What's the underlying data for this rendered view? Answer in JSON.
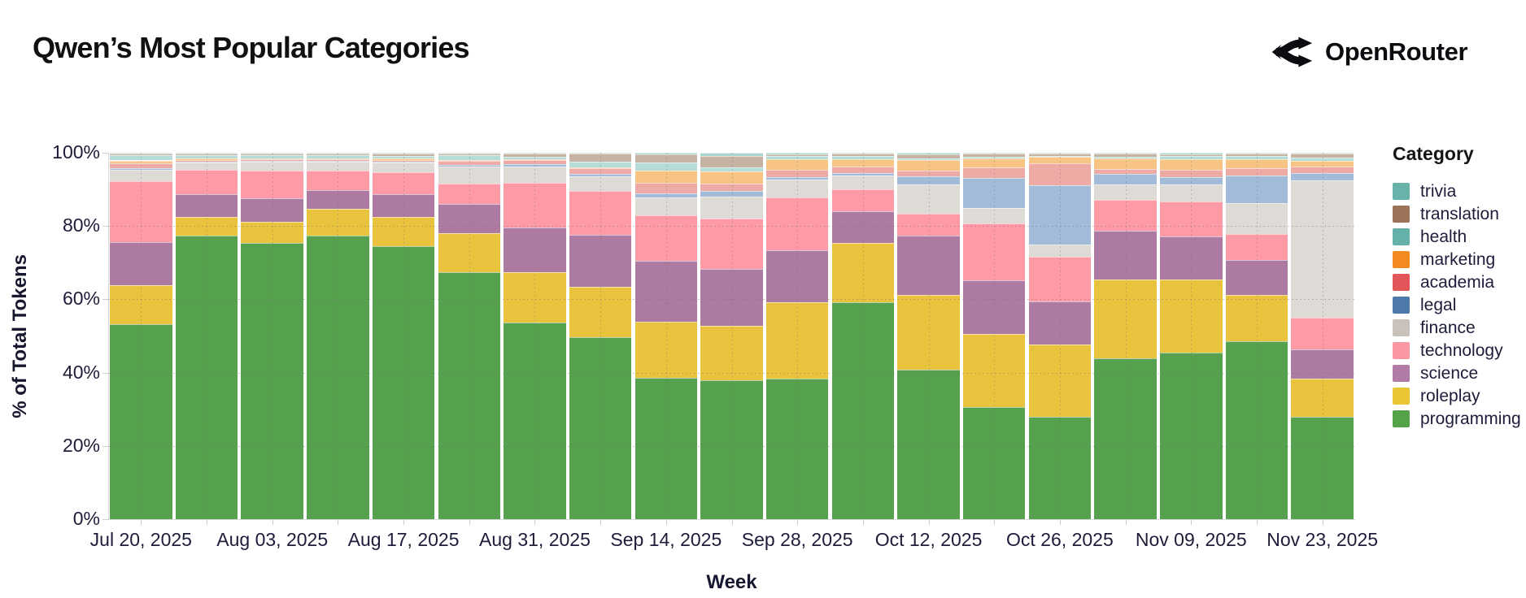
{
  "header": {
    "title": "Qwen’s Most Popular Categories",
    "brand": "OpenRouter"
  },
  "legend": {
    "title": "Category",
    "items": [
      {
        "label": "trivia",
        "color": "#68b2a9"
      },
      {
        "label": "translation",
        "color": "#9c7359"
      },
      {
        "label": "health",
        "color": "#63b1a8"
      },
      {
        "label": "marketing",
        "color": "#f28a1f"
      },
      {
        "label": "academia",
        "color": "#e25558"
      },
      {
        "label": "legal",
        "color": "#4d79ab"
      },
      {
        "label": "finance",
        "color": "#c9c2ba"
      },
      {
        "label": "technology",
        "color": "#fb97a3"
      },
      {
        "label": "science",
        "color": "#b17ba5"
      },
      {
        "label": "roleplay",
        "color": "#eac637"
      },
      {
        "label": "programming",
        "color": "#55a348"
      }
    ]
  },
  "chart_data": {
    "type": "bar",
    "stacked": true,
    "unit": "percent_of_total_tokens",
    "title": "Qwen’s Most Popular Categories",
    "xlabel": "Week",
    "ylabel": "% of Total Tokens",
    "ylim": [
      0,
      100
    ],
    "grid": true,
    "legend_position": "right",
    "weeks": [
      "Jul 20, 2025",
      "Jul 27, 2025",
      "Aug 03, 2025",
      "Aug 10, 2025",
      "Aug 17, 2025",
      "Aug 24, 2025",
      "Aug 31, 2025",
      "Sep 07, 2025",
      "Sep 14, 2025",
      "Sep 21, 2025",
      "Sep 28, 2025",
      "Oct 05, 2025",
      "Oct 12, 2025",
      "Oct 19, 2025",
      "Oct 26, 2025",
      "Nov 02, 2025",
      "Nov 09, 2025",
      "Nov 16, 2025",
      "Nov 23, 2025"
    ],
    "x_ticks": [
      {
        "label": "Jul 20, 2025",
        "week": 0
      },
      {
        "label": "Aug 03, 2025",
        "week": 2
      },
      {
        "label": "Aug 17, 2025",
        "week": 4
      },
      {
        "label": "Aug 31, 2025",
        "week": 6
      },
      {
        "label": "Sep 14, 2025",
        "week": 8
      },
      {
        "label": "Sep 28, 2025",
        "week": 10
      },
      {
        "label": "Oct 12, 2025",
        "week": 12
      },
      {
        "label": "Oct 26, 2025",
        "week": 14
      },
      {
        "label": "Nov 09, 2025",
        "week": 16
      },
      {
        "label": "Nov 23, 2025",
        "week": 18
      }
    ],
    "y_ticks": [
      {
        "label": "0%",
        "value": 0
      },
      {
        "label": "20%",
        "value": 20
      },
      {
        "label": "40%",
        "value": 40
      },
      {
        "label": "60%",
        "value": 60
      },
      {
        "label": "80%",
        "value": 80
      },
      {
        "label": "100%",
        "value": 100
      }
    ],
    "series": [
      {
        "name": "programming",
        "color": "#55a14e",
        "values": [
          53.2,
          77.4,
          75.5,
          77.3,
          74.6,
          67.3,
          53.6,
          49.7,
          38.5,
          37.9,
          38.3,
          59.3,
          40.9,
          30.5,
          28.0,
          43.9,
          45.4,
          48.6,
          27.9
        ]
      },
      {
        "name": "roleplay",
        "color": "#e9c33e",
        "values": [
          10.6,
          5.0,
          5.7,
          7.3,
          7.9,
          10.7,
          13.7,
          13.8,
          15.3,
          14.8,
          21.0,
          16.1,
          20.3,
          20.0,
          19.6,
          21.5,
          20.0,
          12.6,
          10.4
        ]
      },
      {
        "name": "science",
        "color": "#ad7aa2",
        "values": [
          11.8,
          6.4,
          6.4,
          5.1,
          6.2,
          8.1,
          12.2,
          14.1,
          16.8,
          15.5,
          14.1,
          8.7,
          16.2,
          14.8,
          11.8,
          13.3,
          11.8,
          9.6,
          8.1
        ]
      },
      {
        "name": "technology",
        "color": "#fd9aa5",
        "values": [
          16.6,
          6.5,
          7.5,
          5.4,
          6.0,
          5.5,
          12.3,
          12.0,
          12.4,
          13.8,
          14.4,
          6.0,
          6.0,
          15.5,
          12.2,
          8.4,
          9.4,
          7.0,
          8.7
        ]
      },
      {
        "name": "finance",
        "color": "#dedad6",
        "values": [
          3.2,
          2.0,
          2.4,
          2.4,
          2.6,
          4.6,
          4.5,
          4.0,
          4.8,
          6.0,
          4.8,
          3.6,
          7.9,
          4.2,
          3.4,
          4.3,
          4.7,
          8.5,
          37.4
        ]
      },
      {
        "name": "legal",
        "color": "#a2bbd8",
        "values": [
          0.4,
          0.3,
          0.2,
          0.2,
          0.2,
          0.5,
          0.5,
          0.7,
          1.2,
          1.6,
          0.7,
          0.7,
          2.3,
          8.2,
          16.1,
          2.8,
          2.1,
          7.5,
          2.0
        ]
      },
      {
        "name": "academia",
        "color": "#eeaaa4",
        "values": [
          1.3,
          0.5,
          0.5,
          0.5,
          0.6,
          1.0,
          1.1,
          1.4,
          2.9,
          1.9,
          2.0,
          1.8,
          1.6,
          2.8,
          6.0,
          1.4,
          2.0,
          2.0,
          1.7
        ]
      },
      {
        "name": "marketing",
        "color": "#f8c483",
        "values": [
          0.8,
          0.3,
          0.3,
          0.3,
          0.3,
          0.3,
          0.3,
          0.3,
          3.3,
          3.5,
          3.0,
          2.0,
          2.7,
          2.5,
          1.7,
          2.9,
          2.9,
          2.4,
          1.5
        ]
      },
      {
        "name": "health",
        "color": "#b6dcd7",
        "values": [
          1.4,
          0.9,
          0.8,
          0.8,
          0.8,
          1.4,
          0.6,
          1.5,
          2.1,
          1.0,
          0.8,
          1.0,
          0.5,
          0.4,
          0.3,
          0.4,
          0.9,
          1.0,
          0.9
        ]
      },
      {
        "name": "translation",
        "color": "#c7b3a3",
        "values": [
          0.5,
          0.4,
          0.4,
          0.4,
          0.5,
          0.4,
          0.9,
          2.2,
          2.3,
          3.2,
          0.5,
          0.5,
          1.2,
          0.8,
          0.6,
          0.8,
          0.4,
          0.5,
          1.1
        ]
      },
      {
        "name": "trivia",
        "color": "#a9d6d1",
        "values": [
          0.2,
          0.3,
          0.3,
          0.3,
          0.3,
          0.2,
          0.3,
          0.3,
          0.4,
          0.8,
          0.4,
          0.3,
          0.4,
          0.3,
          0.3,
          0.3,
          0.4,
          0.3,
          0.3
        ]
      }
    ]
  }
}
